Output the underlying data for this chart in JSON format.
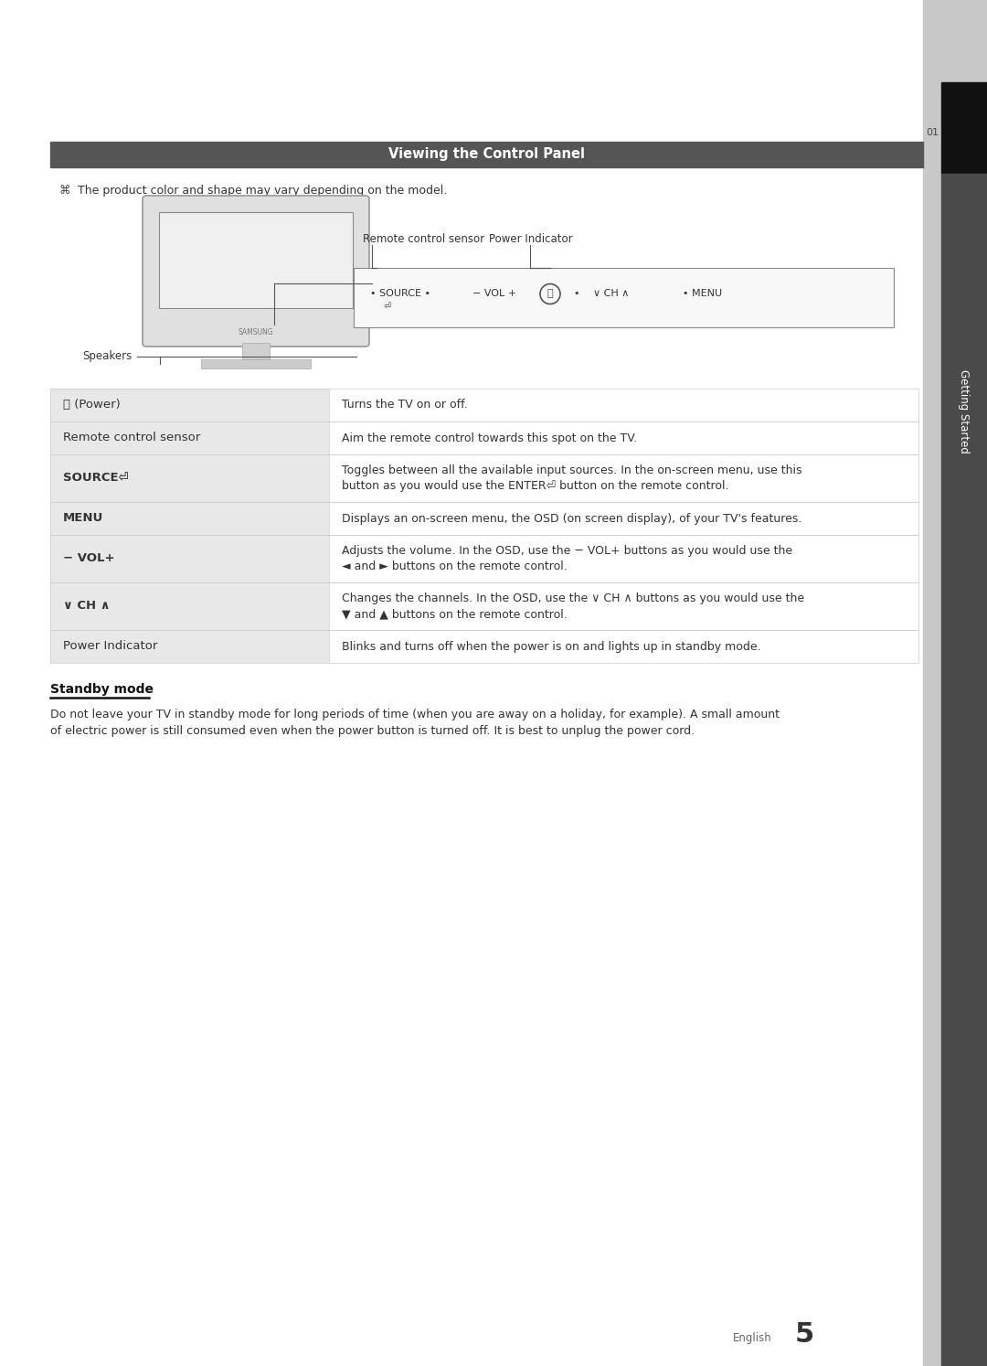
{
  "title": "Viewing the Control Panel",
  "title_bg": "#555555",
  "title_text_color": "#ffffff",
  "page_bg": "#ffffff",
  "note_text": "The product color and shape may vary depending on the model.",
  "labels": {
    "speakers": "Speakers",
    "remote_sensor": "Remote control sensor",
    "power_indicator": "Power Indicator"
  },
  "table_rows": [
    {
      "label": "⏻ (Power)",
      "desc": "Turns the TV on or off.",
      "bold_label": false,
      "rh": 36
    },
    {
      "label": "Remote control sensor",
      "desc": "Aim the remote control towards this spot on the TV.",
      "bold_label": false,
      "rh": 36
    },
    {
      "label": "SOURCE⏎",
      "desc": "Toggles between all the available input sources. In the on-screen menu, use this\nbutton as you would use the ENTER⏎ button on the remote control.",
      "bold_label": true,
      "rh": 52
    },
    {
      "label": "MENU",
      "desc": "Displays an on-screen menu, the OSD (on screen display), of your TV's features.",
      "bold_label": true,
      "rh": 36
    },
    {
      "label": "− VOL+",
      "desc": "Adjusts the volume. In the OSD, use the − VOL+ buttons as you would use the\n◄ and ► buttons on the remote control.",
      "bold_label": true,
      "rh": 52
    },
    {
      "label": "∨ CH ∧",
      "desc": "Changes the channels. In the OSD, use the ∨ CH ∧ buttons as you would use the\n▼ and ▲ buttons on the remote control.",
      "bold_label": true,
      "rh": 52
    },
    {
      "label": "Power Indicator",
      "desc": "Blinks and turns off when the power is on and lights up in standby mode.",
      "bold_label": false,
      "rh": 36
    }
  ],
  "standby_title": "Standby mode",
  "standby_text": "Do not leave your TV in standby mode for long periods of time (when you are away on a holiday, for example). A small amount\nof electric power is still consumed even when the power button is turned off. It is best to unplug the power cord.",
  "footer_text": "English",
  "footer_page": "5",
  "sidebar_text": "Getting Started",
  "sidebar_number": "01"
}
